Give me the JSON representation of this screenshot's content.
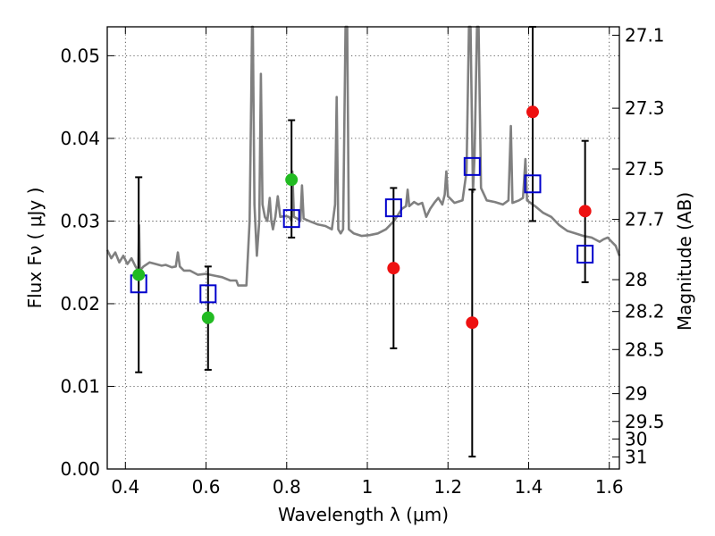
{
  "chart_data": {
    "type": "scatter",
    "xlabel": "Wavelength  λ (μm)",
    "ylabel": "Flux  Fν  ( μJy )",
    "y2label": "Magnitude (AB)",
    "xlim": [
      0.355,
      1.625
    ],
    "ylim": [
      0.0,
      0.0535
    ],
    "x_ticks": [
      "0.4",
      "0.6",
      "0.8",
      "1",
      "1.2",
      "1.4",
      "1.6"
    ],
    "x_tick_values": [
      0.4,
      0.6,
      0.8,
      1.0,
      1.2,
      1.4,
      1.6
    ],
    "y_ticks": [
      "0.00",
      "0.01",
      "0.02",
      "0.03",
      "0.04",
      "0.05"
    ],
    "y_tick_values": [
      0.0,
      0.01,
      0.02,
      0.03,
      0.04,
      0.05
    ],
    "mag_ticks": [
      "27.1",
      "27.3",
      "27.5",
      "27.7",
      "28",
      "28.2",
      "28.5",
      "29",
      "29.5",
      "30",
      "31"
    ],
    "mag_tick_values": [
      27.1,
      27.3,
      27.5,
      27.7,
      28.0,
      28.2,
      28.5,
      29.0,
      29.5,
      30.0,
      31.0
    ],
    "grid": true,
    "colors": {
      "spectrum": "#808080",
      "model_points": "#0000cc",
      "green_points": "#22bb22",
      "red_points": "#ee1111",
      "errorbars": "#000000"
    },
    "spectrum": [
      [
        0.355,
        0.0265
      ],
      [
        0.365,
        0.0255
      ],
      [
        0.375,
        0.0262
      ],
      [
        0.385,
        0.025
      ],
      [
        0.395,
        0.0258
      ],
      [
        0.405,
        0.0248
      ],
      [
        0.415,
        0.0255
      ],
      [
        0.425,
        0.0245
      ],
      [
        0.432,
        0.024
      ],
      [
        0.434,
        0.0295
      ],
      [
        0.436,
        0.024
      ],
      [
        0.445,
        0.0245
      ],
      [
        0.46,
        0.025
      ],
      [
        0.475,
        0.0248
      ],
      [
        0.49,
        0.0246
      ],
      [
        0.5,
        0.0247
      ],
      [
        0.505,
        0.0246
      ],
      [
        0.515,
        0.0244
      ],
      [
        0.525,
        0.0245
      ],
      [
        0.53,
        0.0262
      ],
      [
        0.535,
        0.0245
      ],
      [
        0.545,
        0.024
      ],
      [
        0.56,
        0.024
      ],
      [
        0.58,
        0.0235
      ],
      [
        0.6,
        0.0236
      ],
      [
        0.62,
        0.0234
      ],
      [
        0.64,
        0.0232
      ],
      [
        0.66,
        0.0228
      ],
      [
        0.675,
        0.0228
      ],
      [
        0.68,
        0.0222
      ],
      [
        0.7,
        0.0222
      ],
      [
        0.708,
        0.03
      ],
      [
        0.712,
        0.045
      ],
      [
        0.714,
        0.054
      ],
      [
        0.716,
        0.054
      ],
      [
        0.72,
        0.032
      ],
      [
        0.726,
        0.0258
      ],
      [
        0.732,
        0.03
      ],
      [
        0.736,
        0.0478
      ],
      [
        0.74,
        0.032
      ],
      [
        0.746,
        0.0305
      ],
      [
        0.752,
        0.03
      ],
      [
        0.758,
        0.0328
      ],
      [
        0.762,
        0.03
      ],
      [
        0.766,
        0.029
      ],
      [
        0.772,
        0.0305
      ],
      [
        0.778,
        0.033
      ],
      [
        0.784,
        0.0305
      ],
      [
        0.796,
        0.0306
      ],
      [
        0.806,
        0.0305
      ],
      [
        0.812,
        0.03
      ],
      [
        0.814,
        0.036
      ],
      [
        0.818,
        0.0305
      ],
      [
        0.826,
        0.0303
      ],
      [
        0.834,
        0.03
      ],
      [
        0.838,
        0.0343
      ],
      [
        0.842,
        0.0303
      ],
      [
        0.856,
        0.03
      ],
      [
        0.876,
        0.0296
      ],
      [
        0.896,
        0.0294
      ],
      [
        0.912,
        0.029
      ],
      [
        0.92,
        0.032
      ],
      [
        0.924,
        0.045
      ],
      [
        0.928,
        0.029
      ],
      [
        0.934,
        0.0285
      ],
      [
        0.94,
        0.029
      ],
      [
        0.946,
        0.054
      ],
      [
        0.95,
        0.054
      ],
      [
        0.954,
        0.029
      ],
      [
        0.966,
        0.0285
      ],
      [
        0.986,
        0.0282
      ],
      [
        1.006,
        0.0283
      ],
      [
        1.026,
        0.0285
      ],
      [
        1.046,
        0.029
      ],
      [
        1.066,
        0.03
      ],
      [
        1.086,
        0.0315
      ],
      [
        1.096,
        0.0318
      ],
      [
        1.1,
        0.0338
      ],
      [
        1.104,
        0.0318
      ],
      [
        1.116,
        0.0323
      ],
      [
        1.126,
        0.032
      ],
      [
        1.136,
        0.0322
      ],
      [
        1.146,
        0.0305
      ],
      [
        1.156,
        0.0315
      ],
      [
        1.166,
        0.0322
      ],
      [
        1.176,
        0.0328
      ],
      [
        1.186,
        0.032
      ],
      [
        1.192,
        0.0332
      ],
      [
        1.196,
        0.036
      ],
      [
        1.2,
        0.033
      ],
      [
        1.216,
        0.0322
      ],
      [
        1.236,
        0.0325
      ],
      [
        1.246,
        0.036
      ],
      [
        1.252,
        0.054
      ],
      [
        1.256,
        0.054
      ],
      [
        1.262,
        0.0335
      ],
      [
        1.266,
        0.038
      ],
      [
        1.272,
        0.054
      ],
      [
        1.276,
        0.054
      ],
      [
        1.282,
        0.034
      ],
      [
        1.296,
        0.0325
      ],
      [
        1.316,
        0.0323
      ],
      [
        1.336,
        0.032
      ],
      [
        1.35,
        0.0325
      ],
      [
        1.356,
        0.0415
      ],
      [
        1.36,
        0.0322
      ],
      [
        1.376,
        0.0325
      ],
      [
        1.386,
        0.0328
      ],
      [
        1.392,
        0.0375
      ],
      [
        1.396,
        0.0325
      ],
      [
        1.416,
        0.0318
      ],
      [
        1.436,
        0.031
      ],
      [
        1.456,
        0.0305
      ],
      [
        1.476,
        0.0295
      ],
      [
        1.496,
        0.0288
      ],
      [
        1.516,
        0.0285
      ],
      [
        1.536,
        0.0282
      ],
      [
        1.556,
        0.028
      ],
      [
        1.576,
        0.0275
      ],
      [
        1.586,
        0.0278
      ],
      [
        1.596,
        0.028
      ],
      [
        1.606,
        0.0275
      ],
      [
        1.616,
        0.027
      ],
      [
        1.625,
        0.0258
      ]
    ],
    "model_points": [
      {
        "x": 0.433,
        "y": 0.0224
      },
      {
        "x": 0.605,
        "y": 0.0212
      },
      {
        "x": 0.812,
        "y": 0.0303
      },
      {
        "x": 1.065,
        "y": 0.0316
      },
      {
        "x": 1.26,
        "y": 0.0366
      },
      {
        "x": 1.41,
        "y": 0.0345
      },
      {
        "x": 1.54,
        "y": 0.026
      }
    ],
    "observed_points": [
      {
        "x": 0.433,
        "y": 0.0235,
        "yerr_low": 0.0117,
        "yerr_high": 0.0353,
        "color": "green"
      },
      {
        "x": 0.605,
        "y": 0.0183,
        "yerr_low": 0.012,
        "yerr_high": 0.0245,
        "color": "green"
      },
      {
        "x": 0.812,
        "y": 0.035,
        "yerr_low": 0.028,
        "yerr_high": 0.0422,
        "color": "green"
      },
      {
        "x": 1.065,
        "y": 0.0243,
        "yerr_low": 0.0146,
        "yerr_high": 0.034,
        "color": "red"
      },
      {
        "x": 1.26,
        "y": 0.0177,
        "yerr_low": 0.0015,
        "yerr_high": 0.0338,
        "color": "red"
      },
      {
        "x": 1.41,
        "y": 0.0432,
        "yerr_low": 0.03,
        "yerr_high": 0.054,
        "color": "red"
      },
      {
        "x": 1.54,
        "y": 0.0312,
        "yerr_low": 0.0226,
        "yerr_high": 0.0397,
        "color": "red"
      }
    ]
  }
}
